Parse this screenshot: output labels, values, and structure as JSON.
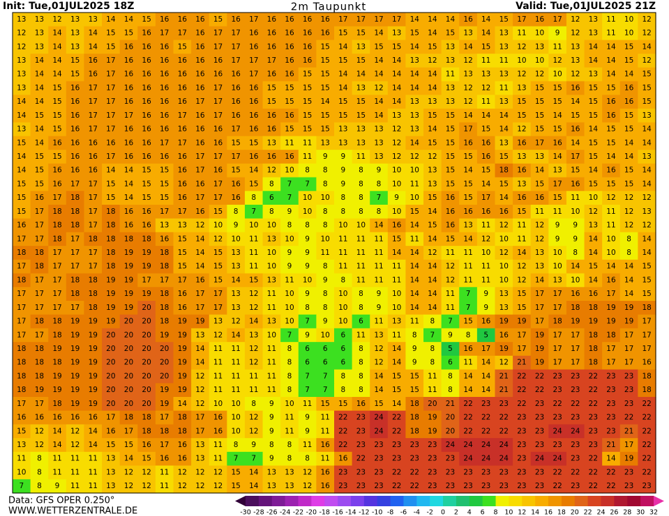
{
  "header": {
    "init": "Init: Tue,01JUL2025 18Z",
    "title": "2m Taupunkt",
    "valid": "Valid: Tue,01JUL2025 21Z"
  },
  "footer": {
    "source": "Data: GFS OPER 0.250°",
    "website": "WWW.WETTERZENTRALE.DE"
  },
  "colorbar": {
    "ticks": [
      -30,
      -28,
      -26,
      -24,
      -22,
      -20,
      -18,
      -16,
      -14,
      -12,
      -10,
      -8,
      -6,
      -4,
      -2,
      0,
      2,
      4,
      6,
      8,
      10,
      12,
      14,
      16,
      18,
      20,
      22,
      24,
      26,
      28,
      30,
      32
    ],
    "under_color": "#300038",
    "colors": [
      "#4a0e5c",
      "#64137a",
      "#7e1c96",
      "#9c22b0",
      "#c02ac8",
      "#de3ce6",
      "#c04cf0",
      "#9c4cf0",
      "#7a40ec",
      "#5434e0",
      "#3440e0",
      "#2062f0",
      "#2090f0",
      "#20b8f0",
      "#20d8e0",
      "#20d0a0",
      "#20c070",
      "#20c840",
      "#3ce020",
      "#f0f000",
      "#f8dc00",
      "#f8c400",
      "#f8ac00",
      "#f09400",
      "#e87c00",
      "#e06418",
      "#d84420",
      "#c83028",
      "#b01830",
      "#a00830",
      "#c01060",
      "#e830a8"
    ]
  },
  "grid": {
    "rows": [
      [
        13,
        13,
        12,
        13,
        13,
        14,
        14,
        15,
        16,
        16,
        16,
        15,
        16,
        17,
        16,
        16,
        16,
        16,
        17,
        17,
        17,
        17,
        14,
        14,
        14,
        16,
        14,
        15,
        17,
        16,
        17,
        12,
        13,
        11,
        10,
        12
      ],
      [
        12,
        13,
        14,
        13,
        14,
        15,
        15,
        16,
        17,
        17,
        16,
        17,
        17,
        16,
        16,
        16,
        16,
        16,
        15,
        15,
        14,
        13,
        15,
        14,
        15,
        13,
        14,
        13,
        11,
        10,
        9,
        12,
        13,
        11,
        10,
        12
      ],
      [
        12,
        13,
        14,
        13,
        14,
        15,
        16,
        16,
        16,
        15,
        16,
        17,
        17,
        16,
        16,
        16,
        16,
        15,
        14,
        13,
        15,
        15,
        14,
        15,
        13,
        14,
        15,
        13,
        12,
        13,
        11,
        13,
        14,
        14,
        15,
        14
      ],
      [
        13,
        14,
        14,
        15,
        16,
        17,
        16,
        16,
        16,
        16,
        16,
        16,
        17,
        17,
        17,
        16,
        16,
        15,
        15,
        15,
        14,
        14,
        13,
        12,
        13,
        12,
        11,
        11,
        10,
        10,
        12,
        13,
        14,
        14,
        15,
        12
      ],
      [
        13,
        14,
        14,
        15,
        16,
        17,
        16,
        16,
        16,
        16,
        16,
        16,
        16,
        17,
        16,
        16,
        15,
        15,
        14,
        14,
        14,
        14,
        14,
        14,
        11,
        13,
        13,
        13,
        12,
        12,
        10,
        12,
        13,
        14,
        14,
        15
      ],
      [
        13,
        14,
        15,
        16,
        17,
        17,
        16,
        16,
        16,
        16,
        16,
        17,
        16,
        16,
        15,
        15,
        15,
        15,
        14,
        13,
        12,
        14,
        14,
        14,
        13,
        12,
        12,
        11,
        13,
        15,
        15,
        16,
        15,
        15,
        16,
        15
      ],
      [
        14,
        14,
        15,
        16,
        17,
        17,
        16,
        16,
        16,
        16,
        17,
        17,
        16,
        16,
        15,
        15,
        15,
        14,
        15,
        15,
        14,
        14,
        13,
        13,
        13,
        12,
        11,
        13,
        15,
        15,
        15,
        14,
        15,
        16,
        16,
        15
      ],
      [
        14,
        15,
        15,
        16,
        17,
        17,
        17,
        16,
        16,
        17,
        16,
        17,
        16,
        16,
        16,
        16,
        15,
        15,
        15,
        15,
        14,
        13,
        13,
        15,
        15,
        14,
        14,
        14,
        15,
        15,
        14,
        15,
        15,
        16,
        15,
        13
      ],
      [
        13,
        14,
        15,
        16,
        17,
        17,
        16,
        16,
        16,
        16,
        16,
        16,
        17,
        16,
        16,
        15,
        15,
        15,
        13,
        13,
        13,
        12,
        13,
        14,
        15,
        17,
        15,
        14,
        12,
        15,
        15,
        16,
        14,
        15,
        15,
        14
      ],
      [
        15,
        14,
        16,
        16,
        16,
        16,
        16,
        16,
        17,
        17,
        16,
        16,
        15,
        15,
        13,
        11,
        11,
        13,
        13,
        13,
        13,
        12,
        14,
        15,
        15,
        16,
        16,
        13,
        16,
        17,
        16,
        14,
        15,
        15,
        14,
        14
      ],
      [
        14,
        15,
        15,
        16,
        16,
        17,
        16,
        16,
        16,
        16,
        17,
        17,
        17,
        16,
        16,
        16,
        11,
        9,
        9,
        11,
        13,
        12,
        12,
        12,
        15,
        15,
        16,
        15,
        13,
        13,
        14,
        17,
        15,
        14,
        14,
        13
      ],
      [
        14,
        15,
        16,
        16,
        16,
        14,
        14,
        15,
        15,
        16,
        17,
        16,
        15,
        14,
        12,
        10,
        8,
        8,
        9,
        8,
        9,
        10,
        10,
        13,
        15,
        14,
        15,
        18,
        16,
        14,
        13,
        15,
        14,
        16,
        15,
        14
      ],
      [
        15,
        15,
        16,
        17,
        17,
        15,
        14,
        15,
        15,
        16,
        16,
        17,
        16,
        15,
        8,
        7,
        7,
        8,
        9,
        8,
        8,
        10,
        11,
        13,
        15,
        15,
        14,
        15,
        13,
        15,
        17,
        16,
        15,
        15,
        15,
        14
      ],
      [
        15,
        16,
        17,
        18,
        17,
        15,
        14,
        15,
        15,
        16,
        17,
        17,
        16,
        8,
        6,
        7,
        10,
        10,
        8,
        8,
        7,
        9,
        10,
        15,
        16,
        15,
        17,
        14,
        16,
        16,
        15,
        11,
        10,
        12,
        12,
        12
      ],
      [
        15,
        17,
        18,
        18,
        17,
        18,
        16,
        16,
        17,
        17,
        16,
        15,
        8,
        7,
        8,
        9,
        10,
        8,
        8,
        8,
        8,
        10,
        15,
        14,
        16,
        16,
        16,
        16,
        15,
        11,
        11,
        10,
        12,
        11,
        12,
        13
      ],
      [
        16,
        17,
        18,
        18,
        17,
        18,
        16,
        16,
        13,
        13,
        12,
        10,
        9,
        10,
        10,
        8,
        8,
        8,
        10,
        10,
        14,
        16,
        14,
        15,
        16,
        13,
        11,
        12,
        11,
        12,
        9,
        9,
        13,
        11,
        12,
        12
      ],
      [
        17,
        17,
        18,
        17,
        18,
        18,
        18,
        18,
        16,
        15,
        14,
        12,
        10,
        11,
        13,
        10,
        9,
        10,
        11,
        11,
        11,
        15,
        11,
        14,
        15,
        14,
        12,
        10,
        11,
        12,
        9,
        9,
        14,
        10,
        8,
        14
      ],
      [
        18,
        18,
        17,
        17,
        17,
        18,
        19,
        19,
        18,
        15,
        14,
        15,
        13,
        11,
        10,
        9,
        9,
        11,
        11,
        11,
        11,
        14,
        14,
        12,
        11,
        11,
        10,
        12,
        14,
        13,
        10,
        8,
        14,
        10,
        8,
        14
      ],
      [
        17,
        18,
        17,
        17,
        17,
        18,
        19,
        19,
        18,
        15,
        14,
        15,
        13,
        11,
        10,
        9,
        9,
        8,
        11,
        11,
        11,
        11,
        14,
        14,
        12,
        11,
        11,
        10,
        12,
        13,
        10,
        14,
        15,
        14,
        14,
        15
      ],
      [
        18,
        17,
        17,
        18,
        18,
        19,
        19,
        17,
        17,
        17,
        16,
        15,
        14,
        15,
        13,
        11,
        10,
        9,
        8,
        11,
        11,
        11,
        14,
        14,
        12,
        11,
        11,
        10,
        12,
        14,
        13,
        10,
        14,
        16,
        14,
        15
      ],
      [
        17,
        17,
        17,
        18,
        18,
        19,
        19,
        19,
        18,
        16,
        17,
        17,
        13,
        12,
        11,
        10,
        9,
        8,
        10,
        8,
        9,
        10,
        14,
        14,
        11,
        7,
        9,
        13,
        15,
        17,
        17,
        16,
        16,
        17,
        14,
        15
      ],
      [
        17,
        17,
        17,
        17,
        18,
        19,
        19,
        20,
        18,
        16,
        17,
        17,
        13,
        12,
        11,
        10,
        8,
        8,
        10,
        8,
        9,
        10,
        14,
        14,
        11,
        7,
        9,
        13,
        15,
        17,
        17,
        18,
        18,
        19,
        19,
        18
      ],
      [
        17,
        18,
        18,
        19,
        19,
        19,
        20,
        20,
        18,
        19,
        19,
        13,
        12,
        14,
        13,
        10,
        7,
        9,
        10,
        6,
        11,
        13,
        11,
        8,
        7,
        15,
        16,
        19,
        19,
        17,
        18,
        19,
        19,
        19,
        19,
        17
      ],
      [
        17,
        17,
        18,
        19,
        19,
        20,
        20,
        20,
        19,
        19,
        13,
        12,
        14,
        13,
        10,
        7,
        9,
        10,
        6,
        11,
        13,
        11,
        8,
        7,
        9,
        8,
        5,
        16,
        17,
        19,
        17,
        17,
        18,
        18,
        17,
        17
      ],
      [
        18,
        18,
        19,
        19,
        19,
        20,
        20,
        20,
        20,
        19,
        14,
        11,
        11,
        12,
        11,
        8,
        6,
        6,
        6,
        8,
        12,
        14,
        9,
        8,
        5,
        16,
        17,
        19,
        17,
        19,
        17,
        17,
        18,
        17,
        17,
        17
      ],
      [
        18,
        18,
        18,
        19,
        19,
        20,
        20,
        20,
        20,
        19,
        14,
        11,
        11,
        12,
        11,
        8,
        6,
        6,
        6,
        8,
        12,
        14,
        9,
        8,
        6,
        11,
        14,
        12,
        21,
        19,
        17,
        17,
        18,
        17,
        17,
        16
      ],
      [
        18,
        18,
        19,
        19,
        19,
        20,
        20,
        20,
        20,
        19,
        12,
        11,
        11,
        11,
        11,
        8,
        7,
        7,
        8,
        8,
        14,
        15,
        15,
        11,
        8,
        14,
        14,
        21,
        22,
        22,
        23,
        23,
        22,
        23,
        23,
        18
      ],
      [
        18,
        19,
        19,
        19,
        19,
        20,
        20,
        20,
        19,
        19,
        12,
        11,
        11,
        11,
        11,
        8,
        7,
        7,
        8,
        8,
        14,
        15,
        15,
        11,
        8,
        14,
        14,
        21,
        22,
        22,
        23,
        23,
        22,
        23,
        23,
        18
      ],
      [
        17,
        17,
        18,
        19,
        19,
        20,
        20,
        20,
        19,
        14,
        12,
        10,
        10,
        8,
        9,
        10,
        11,
        15,
        15,
        16,
        15,
        14,
        18,
        20,
        21,
        22,
        23,
        23,
        22,
        23,
        22,
        22,
        22,
        23,
        23,
        22
      ],
      [
        16,
        16,
        16,
        16,
        16,
        17,
        18,
        18,
        17,
        18,
        17,
        16,
        10,
        12,
        9,
        11,
        9,
        11,
        22,
        23,
        24,
        22,
        18,
        19,
        20,
        22,
        22,
        22,
        23,
        23,
        23,
        23,
        23,
        23,
        22,
        22
      ],
      [
        15,
        12,
        14,
        12,
        14,
        16,
        17,
        18,
        18,
        18,
        17,
        16,
        10,
        12,
        9,
        11,
        9,
        11,
        22,
        23,
        24,
        22,
        18,
        19,
        20,
        22,
        22,
        22,
        23,
        23,
        24,
        24,
        23,
        23,
        21,
        22
      ],
      [
        13,
        12,
        14,
        12,
        14,
        15,
        15,
        16,
        17,
        16,
        13,
        11,
        8,
        9,
        8,
        8,
        11,
        16,
        22,
        23,
        23,
        23,
        23,
        23,
        24,
        24,
        24,
        24,
        23,
        23,
        23,
        23,
        23,
        21,
        17,
        22
      ],
      [
        11,
        8,
        11,
        11,
        11,
        13,
        14,
        15,
        16,
        16,
        13,
        11,
        7,
        7,
        9,
        8,
        8,
        11,
        16,
        22,
        23,
        23,
        23,
        23,
        23,
        24,
        24,
        24,
        23,
        24,
        24,
        23,
        22,
        14,
        19,
        22
      ],
      [
        10,
        8,
        11,
        11,
        11,
        13,
        12,
        12,
        11,
        12,
        12,
        12,
        15,
        14,
        13,
        13,
        12,
        16,
        23,
        23,
        23,
        22,
        22,
        23,
        23,
        23,
        23,
        23,
        23,
        23,
        22,
        22,
        22,
        22,
        23,
        22
      ],
      [
        7,
        8,
        9,
        11,
        11,
        13,
        12,
        12,
        11,
        12,
        12,
        12,
        15,
        14,
        13,
        13,
        12,
        16,
        23,
        23,
        23,
        22,
        22,
        23,
        23,
        23,
        23,
        23,
        23,
        23,
        22,
        23,
        22,
        22,
        23,
        23
      ]
    ]
  }
}
